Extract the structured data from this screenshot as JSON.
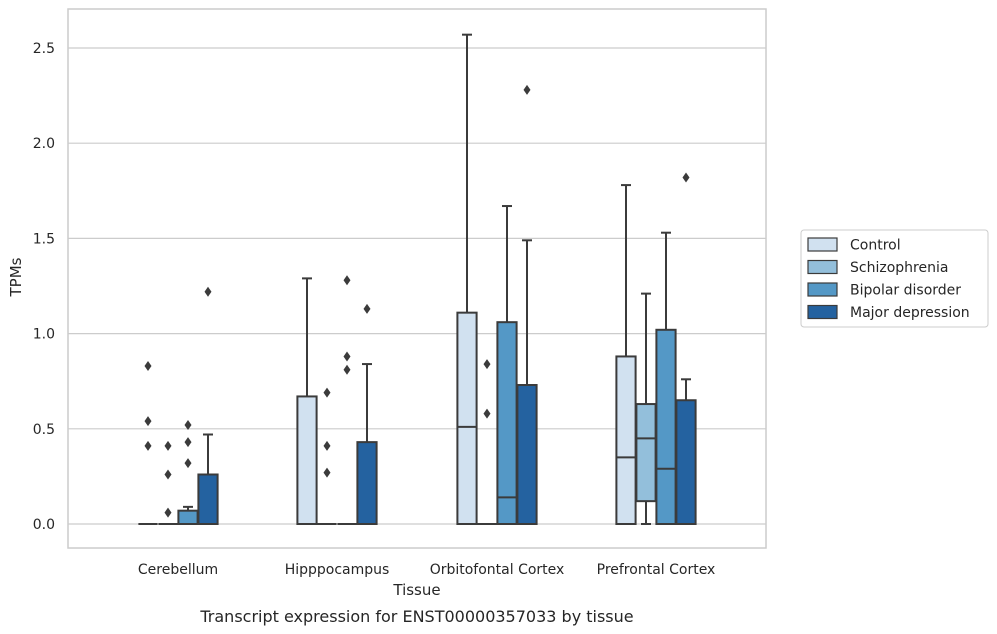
{
  "chart_data": {
    "type": "box",
    "xlabel": "Tissue",
    "ylabel": "TPMs",
    "caption": "Transcript expression for ENST00000357033 by tissue",
    "ylim": [
      -0.12,
      2.7
    ],
    "yticks": [
      0.0,
      0.5,
      1.0,
      1.5,
      2.0,
      2.5
    ],
    "ytick_labels": [
      "0.0",
      "0.5",
      "1.0",
      "1.5",
      "2.0",
      "2.5"
    ],
    "grid": "horizontal",
    "legend_position": "right",
    "categories": [
      "Cerebellum",
      "Hipppocampus",
      "Orbitofontal Cortex",
      "Prefrontal Cortex"
    ],
    "series": [
      {
        "name": "Control",
        "color": "#d1e1f0",
        "boxes": [
          {
            "q1": 0,
            "median": 0,
            "q3": 0,
            "whisker_low": 0,
            "whisker_high": 0,
            "outliers": [
              0.83,
              0.54,
              0.41
            ]
          },
          {
            "q1": 0,
            "median": 0,
            "q3": 0.67,
            "whisker_low": 0,
            "whisker_high": 1.29,
            "outliers": []
          },
          {
            "q1": 0,
            "median": 0.51,
            "q3": 1.11,
            "whisker_low": 0,
            "whisker_high": 2.57,
            "outliers": []
          },
          {
            "q1": 0,
            "median": 0.35,
            "q3": 0.88,
            "whisker_low": 0,
            "whisker_high": 1.78,
            "outliers": []
          }
        ]
      },
      {
        "name": "Schizophrenia",
        "color": "#93bfdb",
        "boxes": [
          {
            "q1": 0,
            "median": 0,
            "q3": 0,
            "whisker_low": 0,
            "whisker_high": 0,
            "outliers": [
              0.41,
              0.26,
              0.06
            ]
          },
          {
            "q1": 0,
            "median": 0,
            "q3": 0,
            "whisker_low": 0,
            "whisker_high": 0,
            "outliers": [
              0.69,
              0.41,
              0.27
            ]
          },
          {
            "q1": 0,
            "median": 0,
            "q3": 0,
            "whisker_low": 0,
            "whisker_high": 0,
            "outliers": [
              0.84,
              0.58
            ]
          },
          {
            "q1": 0.12,
            "median": 0.45,
            "q3": 0.63,
            "whisker_low": 0,
            "whisker_high": 1.21,
            "outliers": []
          }
        ]
      },
      {
        "name": "Bipolar disorder",
        "color": "#5498c6",
        "boxes": [
          {
            "q1": 0,
            "median": 0,
            "q3": 0.07,
            "whisker_low": 0,
            "whisker_high": 0.09,
            "outliers": [
              0.52,
              0.43,
              0.32
            ]
          },
          {
            "q1": 0,
            "median": 0,
            "q3": 0,
            "whisker_low": 0,
            "whisker_high": 0,
            "outliers": [
              1.28,
              0.88,
              0.81
            ]
          },
          {
            "q1": 0,
            "median": 0.14,
            "q3": 1.06,
            "whisker_low": 0,
            "whisker_high": 1.67,
            "outliers": []
          },
          {
            "q1": 0,
            "median": 0.29,
            "q3": 1.02,
            "whisker_low": 0,
            "whisker_high": 1.53,
            "outliers": []
          }
        ]
      },
      {
        "name": "Major depression",
        "color": "#2462a0",
        "boxes": [
          {
            "q1": 0,
            "median": 0,
            "q3": 0.26,
            "whisker_low": 0,
            "whisker_high": 0.47,
            "outliers": [
              1.22
            ]
          },
          {
            "q1": 0,
            "median": 0,
            "q3": 0.43,
            "whisker_low": 0,
            "whisker_high": 0.84,
            "outliers": [
              1.13
            ]
          },
          {
            "q1": 0,
            "median": 0,
            "q3": 0.73,
            "whisker_low": 0,
            "whisker_high": 1.49,
            "outliers": [
              2.28
            ]
          },
          {
            "q1": 0,
            "median": 0,
            "q3": 0.65,
            "whisker_low": 0,
            "whisker_high": 0.76,
            "outliers": [
              1.82
            ]
          }
        ]
      }
    ]
  },
  "colors": {
    "edge": "#3b3b3b",
    "grid": "#cccccc",
    "frame": "#cccccc",
    "text": "#262626",
    "background": "#ffffff"
  }
}
